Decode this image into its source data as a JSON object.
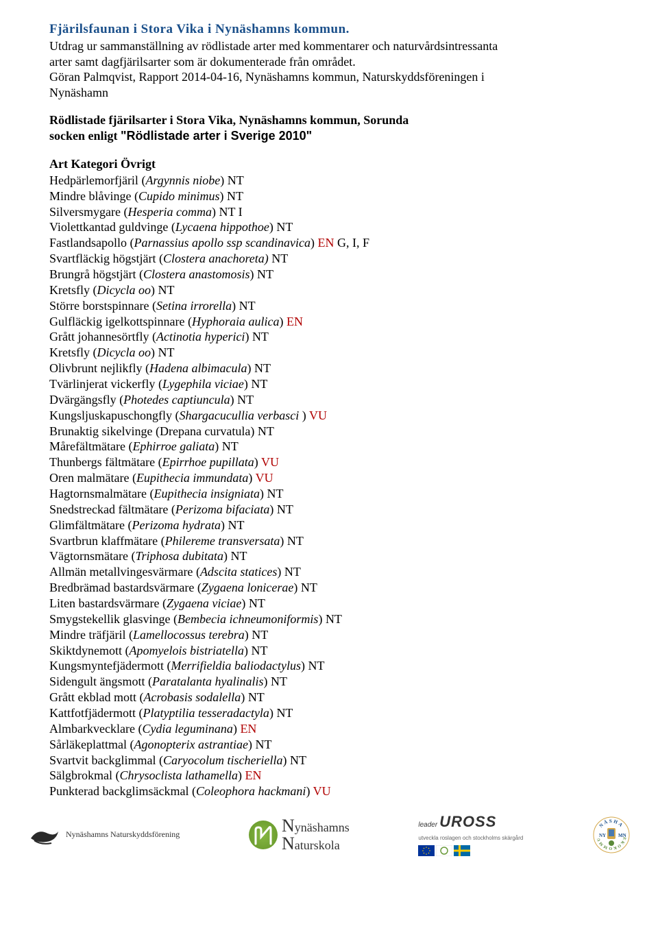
{
  "colors": {
    "title": "#1a4f8a",
    "status_red": "#b00000",
    "body_text": "#000000",
    "background": "#ffffff"
  },
  "title": "Fjärilsfaunan i Stora Vika i Nynäshamns kommun.",
  "intro_line1": "Utdrag ur sammanställning av rödlistade arter med kommentarer och naturvårdsintressanta",
  "intro_line2": "arter samt dagfjärilsarter som är dokumenterade från området.",
  "intro_line3": "Göran Palmqvist, Rapport 2014-04-16, Nynäshamns kommun, Naturskyddsföreningen i",
  "intro_line4": "Nynäshamn",
  "subheading_l1": "Rödlistade fjärilsarter i Stora Vika, Nynäshamns kommun, Sorunda",
  "subheading_l2a": "socken enligt ",
  "subheading_l2b": "\"Rödlistade arter i Sverige 2010\"",
  "col_header": "Art Kategori Övrigt",
  "species": [
    {
      "common": "Hedpärlemorfjäril",
      "open": "(",
      "sci": "Argynnis niobe",
      "close": ")",
      "status": "NT",
      "red": false,
      "extra": ""
    },
    {
      "common": "Mindre blåvinge",
      "open": "(",
      "sci": "Cupido minimus",
      "close": ")",
      "status": "NT",
      "red": false,
      "extra": ""
    },
    {
      "common": "Silversmygare",
      "open": "(",
      "sci": "Hesperia comma",
      "close": ")",
      "status": "NT",
      "red": false,
      "extra": " I"
    },
    {
      "common": "Violettkantad guldvinge",
      "open": "(",
      "sci": "Lycaena hippothoe",
      "close": ")",
      "status": "NT",
      "red": false,
      "extra": ""
    },
    {
      "common": "Fastlandsapollo",
      "open": "(",
      "sci": "Parnassius apollo ssp scandinavica",
      "close": ")",
      "status": "EN",
      "red": true,
      "extra": " G, I, F"
    },
    {
      "common": "Svartfläckig högstjärt",
      "open": "(",
      "sci": "Clostera anachoreta)",
      "close": "",
      "status": "NT",
      "red": false,
      "extra": ""
    },
    {
      "common": "Brungrå högstjärt",
      "open": "(",
      "sci": "Clostera anastomosis",
      "close": ")",
      "status": "NT",
      "red": false,
      "extra": ""
    },
    {
      "common": "Kretsfly",
      "open": "(",
      "sci": "Dicycla oo",
      "close": ")",
      "status": "NT",
      "red": false,
      "extra": ""
    },
    {
      "common": "Större borstspinnare",
      "open": "(",
      "sci": "Setina irrorella",
      "close": ")",
      "status": "NT",
      "red": false,
      "extra": ""
    },
    {
      "common": "Gulfläckig igelkottspinnare",
      "open": "(",
      "sci": "Hyphoraia aulica",
      "close": ")",
      "status": "EN",
      "red": true,
      "extra": ""
    },
    {
      "common": "Grått johannesörtfly",
      "open": "(",
      "sci": "Actinotia hyperici",
      "close": ")",
      "status": "NT",
      "red": false,
      "extra": ""
    },
    {
      "common": "Kretsfly",
      "open": "(",
      "sci": "Dicycla oo",
      "close": ")",
      "status": "NT",
      "red": false,
      "extra": ""
    },
    {
      "common": "Olivbrunt nejlikfly",
      "open": "(",
      "sci": "Hadena albimacula",
      "close": ")",
      "status": "NT",
      "red": false,
      "extra": ""
    },
    {
      "common": "Tvärlinjerat vickerfly",
      "open": "(",
      "sci": "Lygephila viciae",
      "close": ")",
      "status": "NT",
      "red": false,
      "extra": ""
    },
    {
      "common": "Dvärgängsfly",
      "open": "(",
      "sci": "Photedes captiuncula",
      "close": ")",
      "status": "NT",
      "red": false,
      "extra": ""
    },
    {
      "common": "Kungsljuskapuschongfly",
      "open": "(",
      "sci": "Shargacucullia verbasci ",
      "close": ")",
      "status": "VU",
      "red": true,
      "extra": ""
    },
    {
      "common": "Brunaktig sikelvinge (Drepana curvatula)",
      "open": "",
      "sci": "",
      "close": "",
      "status": "NT",
      "red": false,
      "extra": ""
    },
    {
      "common": "Mårefältmätare",
      "open": "(",
      "sci": "Ephirroe galiata",
      "close": ")",
      "status": "NT",
      "red": false,
      "extra": ""
    },
    {
      "common": "Thunbergs fältmätare",
      "open": "(",
      "sci": "Epirrhoe pupillata",
      "close": ")",
      "status": "VU",
      "red": true,
      "extra": ""
    },
    {
      "common": "Oren malmätare",
      "open": "(",
      "sci": "Eupithecia immundata",
      "close": ")",
      "status": "VU",
      "red": true,
      "extra": ""
    },
    {
      "common": "Hagtornsmalmätare",
      "open": "(",
      "sci": "Eupithecia insigniata",
      "close": ")",
      "status": "NT",
      "red": false,
      "extra": ""
    },
    {
      "common": "Snedstreckad fältmätare",
      "open": "(",
      "sci": "Perizoma bifaciata",
      "close": ")",
      "status": "NT",
      "red": false,
      "extra": ""
    },
    {
      "common": "Glimfältmätare",
      "open": "(",
      "sci": "Perizoma hydrata",
      "close": ")",
      "status": "NT",
      "red": false,
      "extra": ""
    },
    {
      "common": "Svartbrun klaffmätare",
      "open": "(",
      "sci": "Philereme transversata",
      "close": ")",
      "status": "NT",
      "red": false,
      "extra": ""
    },
    {
      "common": "Vägtornsmätare",
      "open": "(",
      "sci": "Triphosa dubitata",
      "close": ")",
      "status": "NT",
      "red": false,
      "extra": ""
    },
    {
      "common": "Allmän metallvingesvärmare",
      "open": "(",
      "sci": "Adscita statices",
      "close": ")",
      "status": "NT",
      "red": false,
      "extra": ""
    },
    {
      "common": "Bredbrämad bastardsvärmare",
      "open": "(",
      "sci": "Zygaena lonicerae",
      "close": ")",
      "status": "NT",
      "red": false,
      "extra": ""
    },
    {
      "common": "Liten bastardsvärmare",
      "open": "(",
      "sci": "Zygaena viciae",
      "close": ")",
      "status": "NT",
      "red": false,
      "extra": ""
    },
    {
      "common": "Smygstekellik glasvinge",
      "open": "(",
      "sci": "Bembecia ichneumoniformis",
      "close": ")",
      "status": "NT",
      "red": false,
      "extra": ""
    },
    {
      "common": "Mindre träfjäril",
      "open": "(",
      "sci": "Lamellocossus terebra",
      "close": ")",
      "status": "NT",
      "red": false,
      "extra": ""
    },
    {
      "common": "Skiktdynemott",
      "open": "(",
      "sci": "Apomyelois bistriatella",
      "close": ")",
      "status": "NT",
      "red": false,
      "extra": ""
    },
    {
      "common": "Kungsmyntefjädermott",
      "open": "(",
      "sci": "Merrifieldia baliodactylus",
      "close": ")",
      "status": "NT",
      "red": false,
      "extra": ""
    },
    {
      "common": "Sidengult ängsmott",
      "open": "(",
      "sci": "Paratalanta hyalinalis",
      "close": ")",
      "status": "NT",
      "red": false,
      "extra": ""
    },
    {
      "common": "Grått ekblad mott",
      "open": "(",
      "sci": "Acrobasis sodalella",
      "close": ")",
      "status": "NT",
      "red": false,
      "extra": ""
    },
    {
      "common": "Kattfotfjädermott",
      "open": "(",
      "sci": "Platyptilia tesseradactyla",
      "close": ")",
      "status": "NT",
      "red": false,
      "extra": ""
    },
    {
      "common": "Almbarkvecklare",
      "open": "(",
      "sci": "Cydia leguminana",
      "close": ")",
      "status": "EN",
      "red": true,
      "extra": ""
    },
    {
      "common": "Sårläkeplattmal",
      "open": "(",
      "sci": "Agonopterix astrantiae",
      "close": ")",
      "status": "NT",
      "red": false,
      "extra": ""
    },
    {
      "common": "Svartvit backglimmal",
      "open": "(",
      "sci": "Caryocolum tischeriella",
      "close": ")",
      "status": "NT",
      "red": false,
      "extra": ""
    },
    {
      "common": "Sälgbrokmal",
      "open": "(",
      "sci": "Chrysoclista lathamella",
      "close": ")",
      "status": "EN",
      "red": true,
      "extra": ""
    },
    {
      "common": "Punkterad backglimsäckmal",
      "open": "(",
      "sci": "Coleophora hackmani",
      "close": ")",
      "status": "VU",
      "red": true,
      "extra": ""
    }
  ],
  "footer": {
    "org1": "Nynäshamns Naturskyddsförening",
    "org2_l1_prefix": "N",
    "org2_l1": "ynäshamns",
    "org2_l2_prefix": "N",
    "org2_l2": "aturskola",
    "uross_prefix": "leader",
    "uross": "UROSS",
    "uross_sub": "utveckla roslagen och stockholms skärgård",
    "eko_top": "NÄSHA",
    "eko_mid_l": "NY",
    "eko_mid_r": "MN",
    "eko_bot": "EKOKOMMU"
  }
}
